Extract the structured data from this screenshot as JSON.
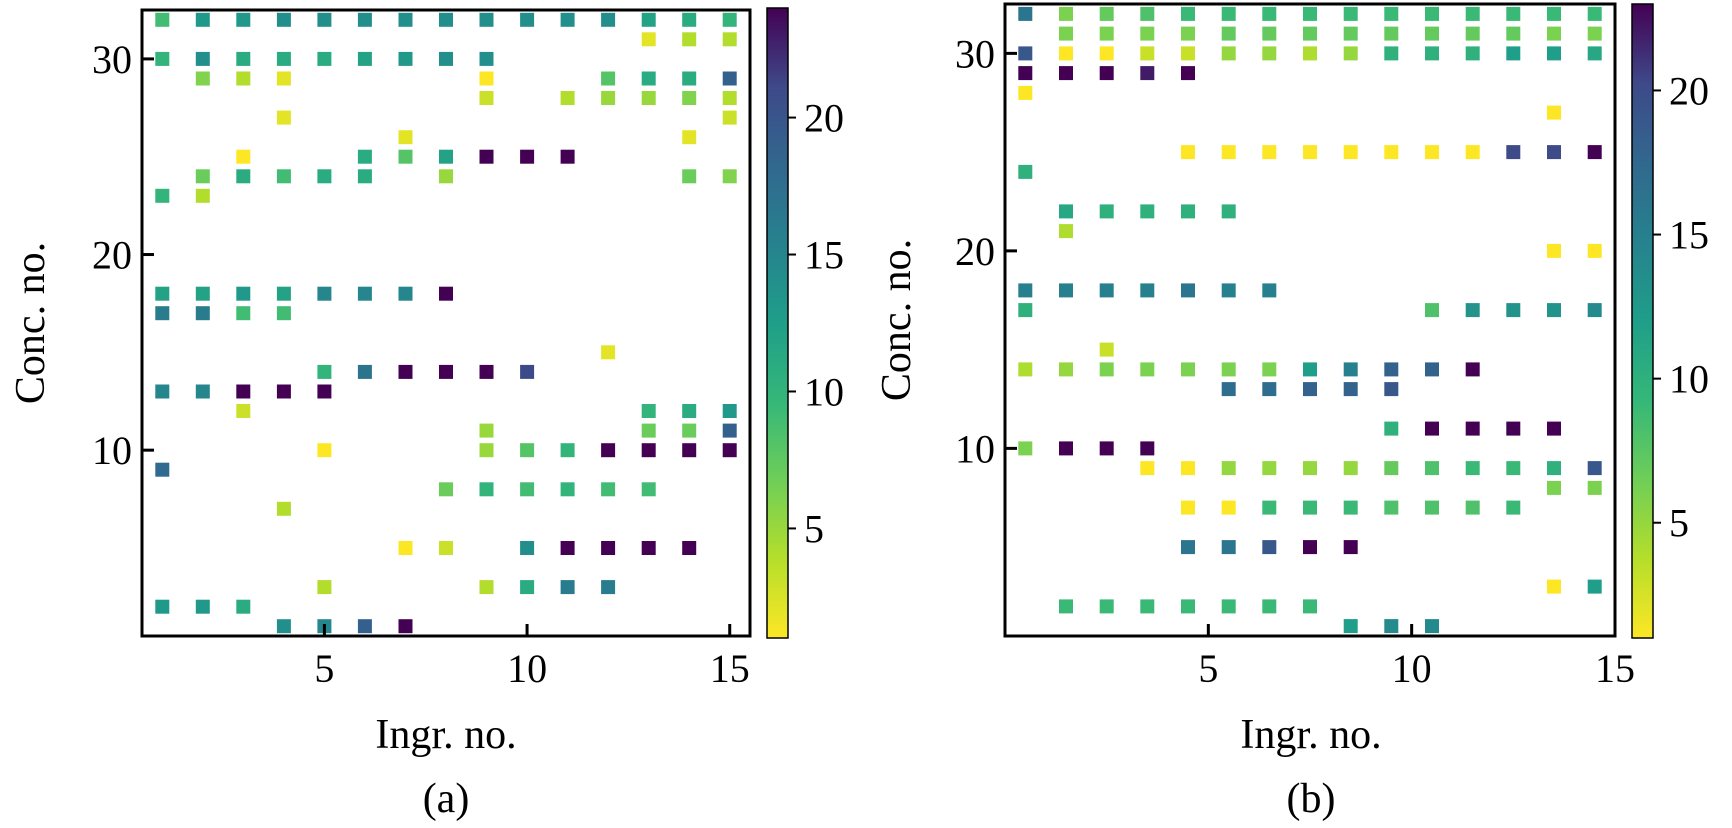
{
  "chart_data": [
    {
      "type": "scatter",
      "panel_label": "(a)",
      "xlabel": "Ingr. no.",
      "ylabel": "Conc. no.",
      "xlim": [
        0.5,
        15.5
      ],
      "ylim": [
        0.5,
        32.5
      ],
      "xticks": [
        5,
        10,
        15
      ],
      "yticks": [
        10,
        20,
        30
      ],
      "colorbar": {
        "colormap": "viridis_r",
        "range": [
          1,
          24
        ],
        "ticks": [
          5,
          10,
          15,
          20
        ]
      },
      "points": [
        [
          1,
          32,
          9
        ],
        [
          2,
          32,
          13
        ],
        [
          3,
          32,
          13
        ],
        [
          4,
          32,
          14
        ],
        [
          5,
          32,
          14
        ],
        [
          6,
          32,
          14
        ],
        [
          7,
          32,
          14
        ],
        [
          8,
          32,
          14
        ],
        [
          9,
          32,
          14
        ],
        [
          10,
          32,
          14
        ],
        [
          11,
          32,
          14
        ],
        [
          12,
          32,
          14
        ],
        [
          13,
          32,
          12
        ],
        [
          14,
          32,
          11
        ],
        [
          15,
          32,
          10
        ],
        [
          13,
          31,
          2
        ],
        [
          14,
          31,
          4
        ],
        [
          15,
          31,
          4
        ],
        [
          1,
          30,
          10
        ],
        [
          2,
          30,
          14
        ],
        [
          3,
          30,
          11
        ],
        [
          4,
          30,
          11
        ],
        [
          5,
          30,
          11
        ],
        [
          6,
          30,
          12
        ],
        [
          7,
          30,
          13
        ],
        [
          8,
          30,
          14
        ],
        [
          9,
          30,
          14
        ],
        [
          2,
          29,
          6
        ],
        [
          3,
          29,
          4
        ],
        [
          4,
          29,
          2
        ],
        [
          9,
          29,
          1
        ],
        [
          12,
          29,
          8
        ],
        [
          13,
          29,
          11
        ],
        [
          14,
          29,
          11
        ],
        [
          15,
          29,
          19
        ],
        [
          9,
          28,
          3
        ],
        [
          11,
          28,
          4
        ],
        [
          12,
          28,
          5
        ],
        [
          13,
          28,
          5
        ],
        [
          14,
          28,
          6
        ],
        [
          15,
          28,
          4
        ],
        [
          4,
          27,
          2
        ],
        [
          15,
          27,
          3
        ],
        [
          7,
          26,
          2
        ],
        [
          14,
          26,
          2
        ],
        [
          3,
          25,
          1
        ],
        [
          6,
          25,
          11
        ],
        [
          7,
          25,
          8
        ],
        [
          8,
          25,
          12
        ],
        [
          9,
          25,
          24
        ],
        [
          10,
          25,
          24
        ],
        [
          11,
          25,
          24
        ],
        [
          2,
          24,
          7
        ],
        [
          3,
          24,
          11
        ],
        [
          4,
          24,
          9
        ],
        [
          5,
          24,
          11
        ],
        [
          6,
          24,
          11
        ],
        [
          8,
          24,
          5
        ],
        [
          14,
          24,
          7
        ],
        [
          15,
          24,
          6
        ],
        [
          1,
          23,
          10
        ],
        [
          2,
          23,
          4
        ],
        [
          1,
          18,
          12
        ],
        [
          2,
          18,
          12
        ],
        [
          3,
          18,
          13
        ],
        [
          4,
          18,
          12
        ],
        [
          5,
          18,
          15
        ],
        [
          6,
          18,
          15
        ],
        [
          7,
          18,
          15
        ],
        [
          8,
          18,
          24
        ],
        [
          1,
          17,
          16
        ],
        [
          2,
          17,
          16
        ],
        [
          3,
          17,
          9
        ],
        [
          4,
          17,
          9
        ],
        [
          12,
          15,
          2
        ],
        [
          5,
          14,
          10
        ],
        [
          6,
          14,
          17
        ],
        [
          7,
          14,
          24
        ],
        [
          8,
          14,
          24
        ],
        [
          9,
          14,
          24
        ],
        [
          10,
          14,
          21
        ],
        [
          1,
          13,
          15
        ],
        [
          2,
          13,
          15
        ],
        [
          3,
          13,
          24
        ],
        [
          4,
          13,
          24
        ],
        [
          5,
          13,
          24
        ],
        [
          3,
          12,
          3
        ],
        [
          13,
          12,
          10
        ],
        [
          14,
          12,
          11
        ],
        [
          15,
          12,
          13
        ],
        [
          9,
          11,
          5
        ],
        [
          13,
          11,
          7
        ],
        [
          14,
          11,
          7
        ],
        [
          15,
          11,
          19
        ],
        [
          5,
          10,
          1
        ],
        [
          9,
          10,
          5
        ],
        [
          10,
          10,
          8
        ],
        [
          11,
          10,
          10
        ],
        [
          12,
          10,
          24
        ],
        [
          13,
          10,
          24
        ],
        [
          14,
          10,
          24
        ],
        [
          15,
          10,
          24
        ],
        [
          1,
          9,
          18
        ],
        [
          8,
          8,
          7
        ],
        [
          9,
          8,
          10
        ],
        [
          10,
          8,
          9
        ],
        [
          11,
          8,
          10
        ],
        [
          12,
          8,
          9
        ],
        [
          13,
          8,
          9
        ],
        [
          4,
          7,
          4
        ],
        [
          7,
          5,
          1
        ],
        [
          8,
          5,
          3
        ],
        [
          10,
          5,
          14
        ],
        [
          11,
          5,
          24
        ],
        [
          12,
          5,
          24
        ],
        [
          13,
          5,
          24
        ],
        [
          14,
          5,
          24
        ],
        [
          5,
          3,
          4
        ],
        [
          9,
          3,
          4
        ],
        [
          10,
          3,
          11
        ],
        [
          11,
          3,
          16
        ],
        [
          12,
          3,
          16
        ],
        [
          1,
          2,
          13
        ],
        [
          2,
          2,
          13
        ],
        [
          3,
          2,
          11
        ],
        [
          4,
          1,
          14
        ],
        [
          5,
          1,
          15
        ],
        [
          6,
          1,
          19
        ],
        [
          7,
          1,
          24
        ]
      ]
    },
    {
      "type": "scatter",
      "panel_label": "(b)",
      "xlabel": "Ingr. no.",
      "ylabel": "Conc. no.",
      "xlim": [
        0,
        15
      ],
      "ylim": [
        0.5,
        32.5
      ],
      "xticks": [
        5,
        10,
        15
      ],
      "yticks": [
        10,
        20,
        30
      ],
      "colorbar": {
        "colormap": "viridis_r",
        "range": [
          1,
          23
        ],
        "ticks": [
          5,
          10,
          15,
          20
        ]
      },
      "points": [
        [
          0.5,
          32,
          16
        ],
        [
          1.5,
          32,
          6
        ],
        [
          2.5,
          32,
          7
        ],
        [
          3.5,
          32,
          8
        ],
        [
          4.5,
          32,
          9
        ],
        [
          5.5,
          32,
          9
        ],
        [
          6.5,
          32,
          9
        ],
        [
          7.5,
          32,
          9
        ],
        [
          8.5,
          32,
          9
        ],
        [
          9.5,
          32,
          9
        ],
        [
          10.5,
          32,
          9
        ],
        [
          11.5,
          32,
          9
        ],
        [
          12.5,
          32,
          9
        ],
        [
          13.5,
          32,
          9
        ],
        [
          14.5,
          32,
          9
        ],
        [
          1.5,
          31,
          6
        ],
        [
          2.5,
          31,
          6
        ],
        [
          3.5,
          31,
          6
        ],
        [
          4.5,
          31,
          6
        ],
        [
          5.5,
          31,
          7
        ],
        [
          6.5,
          31,
          7
        ],
        [
          7.5,
          31,
          7
        ],
        [
          8.5,
          31,
          7
        ],
        [
          9.5,
          31,
          7
        ],
        [
          10.5,
          31,
          7
        ],
        [
          11.5,
          31,
          7
        ],
        [
          12.5,
          31,
          7
        ],
        [
          13.5,
          31,
          6
        ],
        [
          14.5,
          31,
          6
        ],
        [
          0.5,
          30,
          19
        ],
        [
          1.5,
          30,
          1
        ],
        [
          2.5,
          30,
          1
        ],
        [
          3.5,
          30,
          3
        ],
        [
          4.5,
          30,
          3
        ],
        [
          5.5,
          30,
          5
        ],
        [
          6.5,
          30,
          5
        ],
        [
          7.5,
          30,
          4
        ],
        [
          8.5,
          30,
          5
        ],
        [
          9.5,
          30,
          10
        ],
        [
          10.5,
          30,
          10
        ],
        [
          11.5,
          30,
          10
        ],
        [
          12.5,
          30,
          12
        ],
        [
          13.5,
          30,
          12
        ],
        [
          14.5,
          30,
          11
        ],
        [
          0.5,
          29,
          23
        ],
        [
          1.5,
          29,
          23
        ],
        [
          2.5,
          29,
          23
        ],
        [
          3.5,
          29,
          22
        ],
        [
          4.5,
          29,
          23
        ],
        [
          0.5,
          28,
          1
        ],
        [
          13.5,
          27,
          1
        ],
        [
          4.5,
          25,
          1
        ],
        [
          5.5,
          25,
          1
        ],
        [
          6.5,
          25,
          1
        ],
        [
          7.5,
          25,
          1
        ],
        [
          8.5,
          25,
          1
        ],
        [
          9.5,
          25,
          1
        ],
        [
          10.5,
          25,
          1
        ],
        [
          11.5,
          25,
          1
        ],
        [
          12.5,
          25,
          20
        ],
        [
          13.5,
          25,
          20
        ],
        [
          14.5,
          25,
          23
        ],
        [
          0.5,
          24,
          10
        ],
        [
          1.5,
          22,
          11
        ],
        [
          2.5,
          22,
          10
        ],
        [
          3.5,
          22,
          10
        ],
        [
          4.5,
          22,
          10
        ],
        [
          5.5,
          22,
          10
        ],
        [
          1.5,
          21,
          4
        ],
        [
          13.5,
          20,
          1
        ],
        [
          14.5,
          20,
          1
        ],
        [
          0.5,
          18,
          15
        ],
        [
          1.5,
          18,
          15
        ],
        [
          2.5,
          18,
          15
        ],
        [
          3.5,
          18,
          15
        ],
        [
          4.5,
          18,
          16
        ],
        [
          5.5,
          18,
          15
        ],
        [
          6.5,
          18,
          15
        ],
        [
          0.5,
          17,
          10
        ],
        [
          10.5,
          17,
          8
        ],
        [
          11.5,
          17,
          13
        ],
        [
          12.5,
          17,
          13
        ],
        [
          13.5,
          17,
          13
        ],
        [
          14.5,
          17,
          14
        ],
        [
          2.5,
          15,
          3
        ],
        [
          0.5,
          14,
          4
        ],
        [
          1.5,
          14,
          5
        ],
        [
          2.5,
          14,
          6
        ],
        [
          3.5,
          14,
          6
        ],
        [
          4.5,
          14,
          6
        ],
        [
          5.5,
          14,
          6
        ],
        [
          6.5,
          14,
          6
        ],
        [
          7.5,
          14,
          12
        ],
        [
          8.5,
          14,
          15
        ],
        [
          9.5,
          14,
          18
        ],
        [
          10.5,
          14,
          18
        ],
        [
          11.5,
          14,
          23
        ],
        [
          5.5,
          13,
          17
        ],
        [
          6.5,
          13,
          17
        ],
        [
          7.5,
          13,
          18
        ],
        [
          8.5,
          13,
          18
        ],
        [
          9.5,
          13,
          19
        ],
        [
          9.5,
          11,
          10
        ],
        [
          10.5,
          11,
          23
        ],
        [
          11.5,
          11,
          23
        ],
        [
          12.5,
          11,
          23
        ],
        [
          13.5,
          11,
          23
        ],
        [
          0.5,
          10,
          6
        ],
        [
          1.5,
          10,
          23
        ],
        [
          2.5,
          10,
          23
        ],
        [
          3.5,
          10,
          23
        ],
        [
          3.5,
          9,
          1
        ],
        [
          4.5,
          9,
          1
        ],
        [
          5.5,
          9,
          5
        ],
        [
          6.5,
          9,
          5
        ],
        [
          7.5,
          9,
          5
        ],
        [
          8.5,
          9,
          5
        ],
        [
          9.5,
          9,
          7
        ],
        [
          10.5,
          9,
          8
        ],
        [
          11.5,
          9,
          9
        ],
        [
          12.5,
          9,
          9
        ],
        [
          13.5,
          9,
          10
        ],
        [
          14.5,
          9,
          19
        ],
        [
          13.5,
          8,
          6
        ],
        [
          14.5,
          8,
          6
        ],
        [
          4.5,
          7,
          1
        ],
        [
          5.5,
          7,
          1
        ],
        [
          6.5,
          7,
          9
        ],
        [
          7.5,
          7,
          9
        ],
        [
          8.5,
          7,
          9
        ],
        [
          9.5,
          7,
          8
        ],
        [
          10.5,
          7,
          8
        ],
        [
          11.5,
          7,
          8
        ],
        [
          12.5,
          7,
          9
        ],
        [
          4.5,
          5,
          16
        ],
        [
          5.5,
          5,
          16
        ],
        [
          6.5,
          5,
          19
        ],
        [
          7.5,
          5,
          23
        ],
        [
          8.5,
          5,
          23
        ],
        [
          13.5,
          3,
          1
        ],
        [
          14.5,
          3,
          12
        ],
        [
          1.5,
          2,
          9
        ],
        [
          2.5,
          2,
          9
        ],
        [
          3.5,
          2,
          9
        ],
        [
          4.5,
          2,
          9
        ],
        [
          5.5,
          2,
          9
        ],
        [
          6.5,
          2,
          9
        ],
        [
          7.5,
          2,
          9
        ],
        [
          8.5,
          1,
          12
        ],
        [
          9.5,
          1,
          14
        ],
        [
          10.5,
          1,
          14
        ]
      ]
    }
  ]
}
